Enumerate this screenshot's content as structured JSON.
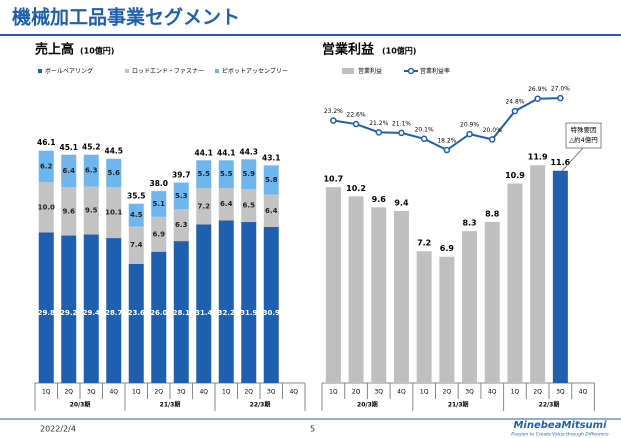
{
  "header": {
    "title": "機械加工品事業セグメント"
  },
  "chart_data": [
    {
      "type": "stacked_bar",
      "title": "売上高",
      "unit": "(10億円)",
      "groups": [
        {
          "label": "20/3期",
          "categories": [
            "1Q",
            "2Q",
            "3Q",
            "4Q"
          ]
        },
        {
          "label": "21/3期",
          "categories": [
            "1Q",
            "2Q",
            "3Q",
            "4Q"
          ]
        },
        {
          "label": "22/3期",
          "categories": [
            "1Q",
            "2Q",
            "3Q",
            "4Q"
          ]
        }
      ],
      "series": [
        {
          "name": "ボールベアリング",
          "color": "#1f5fb0",
          "values": [
            29.8,
            29.2,
            29.4,
            28.7,
            23.6,
            26.0,
            28.1,
            31.4,
            32.2,
            31.9,
            30.9,
            null
          ],
          "value_labels": [
            "29.8",
            "29.2",
            "29.4",
            "28.7",
            "23.6",
            "26.0",
            "28.1",
            "31.4",
            "32.2",
            "31.9",
            "30.9",
            null
          ]
        },
        {
          "name": "ロッドエンド・ファスナー",
          "color": "#c3c3c3",
          "values": [
            10.0,
            9.6,
            9.5,
            10.1,
            7.4,
            6.9,
            6.3,
            7.2,
            6.4,
            6.5,
            6.4,
            null
          ],
          "value_labels": [
            "10.0",
            "9.6",
            "9.5",
            "10.1",
            "7.4",
            "6.9",
            "6.3",
            "7.2",
            "6.4",
            "6.5",
            "6.4",
            null
          ]
        },
        {
          "name": "ピボットアッセンブリー",
          "color": "#6fb6ee",
          "values": [
            6.2,
            6.4,
            6.3,
            5.6,
            4.5,
            5.1,
            5.3,
            5.5,
            5.5,
            5.9,
            5.8,
            null
          ],
          "value_labels": [
            "6.2",
            "6.4",
            "6.3",
            "5.6",
            "4.5",
            "5.1",
            "5.3",
            "5.5",
            "5.5",
            "5.9",
            "5.8",
            null
          ]
        }
      ],
      "totals": {
        "values": [
          46.1,
          45.1,
          45.2,
          44.5,
          35.5,
          38.0,
          39.7,
          44.1,
          44.1,
          44.3,
          43.1,
          null
        ],
        "value_labels": [
          "46.1",
          "45.1",
          "45.2",
          "44.5",
          "35.5",
          "38.0",
          "39.7",
          "44.1",
          "44.1",
          "44.3",
          "43.1",
          null
        ]
      }
    },
    {
      "type": "bar_line",
      "title": "営業利益",
      "unit": "(10億円)",
      "groups": [
        {
          "label": "20/3期",
          "categories": [
            "1Q",
            "2Q",
            "3Q",
            "4Q"
          ]
        },
        {
          "label": "21/3期",
          "categories": [
            "1Q",
            "2Q",
            "3Q",
            "4Q"
          ]
        },
        {
          "label": "22/3期",
          "categories": [
            "1Q",
            "2Q",
            "3Q",
            "4Q"
          ]
        }
      ],
      "series": [
        {
          "name": "営業利益",
          "type": "bar",
          "color": "#bfbfbf",
          "colors": [
            "#bfbfbf",
            "#bfbfbf",
            "#bfbfbf",
            "#bfbfbf",
            "#bfbfbf",
            "#bfbfbf",
            "#bfbfbf",
            "#bfbfbf",
            "#bfbfbf",
            "#bfbfbf",
            "#1f5fb0",
            null
          ],
          "values": [
            10.7,
            10.2,
            9.6,
            9.4,
            7.2,
            6.9,
            8.3,
            8.8,
            10.9,
            11.9,
            11.6,
            null
          ]
        },
        {
          "name": "営業利益率",
          "type": "line",
          "color": "#1f5fb0",
          "values": [
            23.2,
            22.6,
            21.2,
            21.1,
            20.1,
            18.2,
            20.9,
            20.0,
            24.8,
            26.9,
            27.0,
            null
          ],
          "value_labels": [
            "23.2%",
            "22.6%",
            "21.2%",
            "21.1%",
            "20.1%",
            "18.2%",
            "20.9%",
            "20.0%",
            "24.8%",
            "26.9%",
            "27.0%",
            null
          ]
        }
      ],
      "annotation": [
        "特殊要因",
        "△約4億円"
      ]
    }
  ],
  "footer": {
    "date": "2022/2/4",
    "page": "5",
    "logo": "MinebeaMitsumi",
    "tagline": "Passion to Create Value through Difference"
  }
}
